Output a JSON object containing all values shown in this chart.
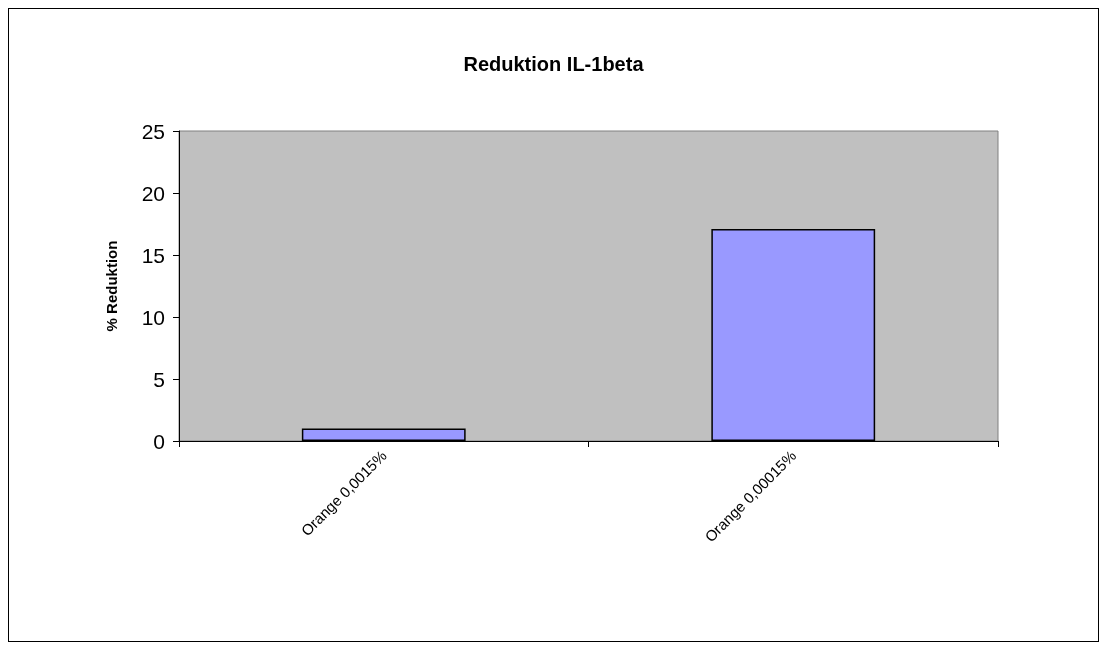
{
  "chart_data": {
    "type": "bar",
    "title": "Reduktion IL-1beta",
    "ylabel": "% Reduktion",
    "categories": [
      "Orange 0,0015%",
      "Orange 0,00015%"
    ],
    "values": [
      1,
      17.1
    ],
    "color": "#9999ff",
    "ylim": [
      0,
      25
    ],
    "yticks": [
      0,
      5,
      10,
      15,
      20,
      25
    ],
    "grid": false
  }
}
